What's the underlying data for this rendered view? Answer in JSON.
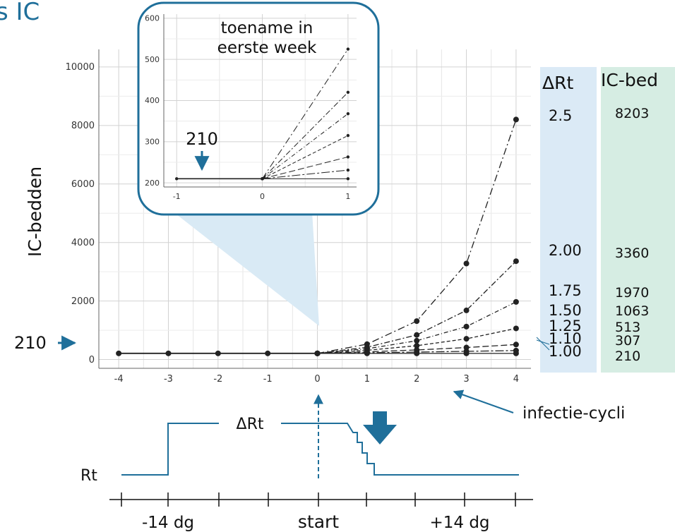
{
  "header": {
    "title_fragment": "s IC"
  },
  "colors": {
    "accent": "#1f6f9a",
    "inset_bg": "#ffffff",
    "rt_column_bg": "#dbeaf6",
    "bed_column_bg": "#d6ede3",
    "grid": "#d2d2d2",
    "series": "#222222"
  },
  "chart_data": [
    {
      "type": "line",
      "xlabel": "",
      "ylabel": "IC-bedden",
      "xlim": [
        -4.4,
        4.3
      ],
      "ylim": [
        -300,
        10600
      ],
      "x_ticks": [
        -4,
        -3,
        -2,
        -1,
        0,
        1,
        2,
        3,
        4
      ],
      "y_ticks": [
        0,
        2000,
        4000,
        6000,
        8000,
        10000
      ],
      "grid": true,
      "legend": "none",
      "baseline": {
        "label": "210",
        "value": 210
      },
      "history": {
        "x": [
          -4,
          -3,
          -2,
          -1,
          0
        ],
        "y": [
          210,
          210,
          210,
          210,
          210
        ]
      },
      "series": [
        {
          "name": "2.5",
          "x": [
            0,
            1,
            2,
            3,
            4
          ],
          "y": [
            210,
            525,
            1313,
            3281,
            8203
          ]
        },
        {
          "name": "2.00",
          "x": [
            0,
            1,
            2,
            3,
            4
          ],
          "y": [
            210,
            420,
            840,
            1680,
            3360
          ]
        },
        {
          "name": "1.75",
          "x": [
            0,
            1,
            2,
            3,
            4
          ],
          "y": [
            210,
            368,
            643,
            1126,
            1970
          ]
        },
        {
          "name": "1.50",
          "x": [
            0,
            1,
            2,
            3,
            4
          ],
          "y": [
            210,
            315,
            473,
            709,
            1063
          ]
        },
        {
          "name": "1.25",
          "x": [
            0,
            1,
            2,
            3,
            4
          ],
          "y": [
            210,
            263,
            328,
            410,
            513
          ]
        },
        {
          "name": "1.10",
          "x": [
            0,
            1,
            2,
            3,
            4
          ],
          "y": [
            210,
            231,
            254,
            280,
            307
          ]
        },
        {
          "name": "1.00",
          "x": [
            0,
            1,
            2,
            3,
            4
          ],
          "y": [
            210,
            210,
            210,
            210,
            210
          ]
        }
      ],
      "table": {
        "rt_header": "ΔRt",
        "bed_header": "IC-bed",
        "rows": [
          {
            "rt": "2.5",
            "bed": "8203"
          },
          {
            "rt": "2.00",
            "bed": "3360"
          },
          {
            "rt": "1.75",
            "bed": "1970"
          },
          {
            "rt": "1.50",
            "bed": "1063"
          },
          {
            "rt": "1.25",
            "bed": "513"
          },
          {
            "rt": "1.10",
            "bed": "307"
          },
          {
            "rt": "1.00",
            "bed": "210"
          }
        ]
      },
      "annotations": {
        "cycles": "infectie-cycli"
      }
    },
    {
      "type": "line",
      "title": "toename in eerste week",
      "xlim": [
        -1.15,
        1.1
      ],
      "ylim": [
        190,
        610
      ],
      "x_ticks": [
        -1,
        0,
        1
      ],
      "y_ticks": [
        200,
        300,
        400,
        500,
        600
      ],
      "grid": true,
      "baseline": {
        "label": "210",
        "value": 210
      },
      "history": {
        "x": [
          -1,
          0
        ],
        "y": [
          210,
          210
        ]
      },
      "series": [
        {
          "name": "2.5",
          "x": [
            0,
            1
          ],
          "y": [
            210,
            525
          ]
        },
        {
          "name": "2.00",
          "x": [
            0,
            1
          ],
          "y": [
            210,
            420
          ]
        },
        {
          "name": "1.75",
          "x": [
            0,
            1
          ],
          "y": [
            210,
            368
          ]
        },
        {
          "name": "1.50",
          "x": [
            0,
            1
          ],
          "y": [
            210,
            315
          ]
        },
        {
          "name": "1.25",
          "x": [
            0,
            1
          ],
          "y": [
            210,
            263
          ]
        },
        {
          "name": "1.10",
          "x": [
            0,
            1
          ],
          "y": [
            210,
            231
          ]
        },
        {
          "name": "1.00",
          "x": [
            0,
            1
          ],
          "y": [
            210,
            210
          ]
        }
      ]
    }
  ],
  "timeline": {
    "rt_label": "Rt",
    "delta_label": "ΔRt",
    "start_label": "start",
    "minus_label": "-14 dg",
    "plus_label": "+14 dg"
  }
}
